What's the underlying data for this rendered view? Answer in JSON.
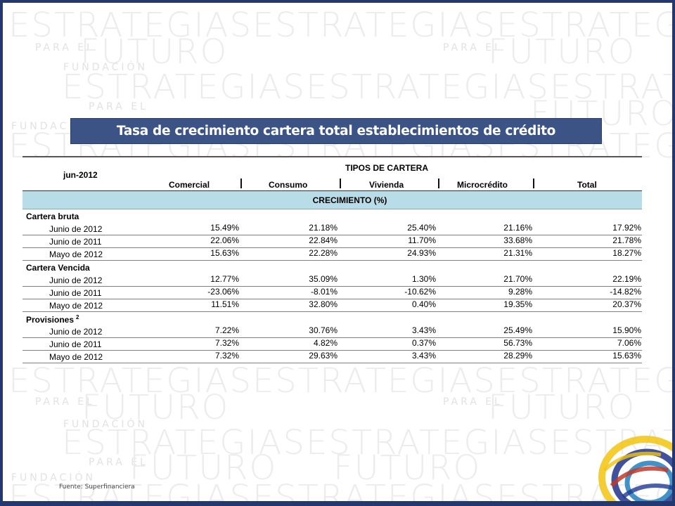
{
  "title": "Tasa de crecimiento cartera total establecimientos de crédito",
  "watermark": {
    "big_word_1": "ESTRATEGIASESTRATEGIASESTRATEGIAS",
    "big_word_2": "FUTURO",
    "small_1": "PARA EL",
    "small_2": "FUNDACIÓN"
  },
  "table": {
    "date": "jun-2012",
    "types_header": "TIPOS DE CARTERA",
    "columns": [
      "Comercial",
      "Consumo",
      "Vivienda",
      "Microcrédito",
      "Total"
    ],
    "band": "CRECIMIENTO (%)",
    "sections": [
      {
        "name": "Cartera bruta",
        "sup": "",
        "rows": [
          {
            "label": "Junio de 2012",
            "values": [
              "15.49%",
              "21.18%",
              "25.40%",
              "21.16%",
              "17.92%"
            ]
          },
          {
            "label": "Junio de 2011",
            "values": [
              "22.06%",
              "22.84%",
              "11.70%",
              "33.68%",
              "21.78%"
            ]
          },
          {
            "label": "Mayo de 2012",
            "values": [
              "15.63%",
              "22.28%",
              "24.93%",
              "21.31%",
              "18.27%"
            ]
          }
        ]
      },
      {
        "name": "Cartera Vencida",
        "sup": "",
        "rows": [
          {
            "label": "Junio de 2012",
            "values": [
              "12.77%",
              "35.09%",
              "1.30%",
              "21.70%",
              "22.19%"
            ]
          },
          {
            "label": "Junio de 2011",
            "values": [
              "-23.06%",
              "-8.01%",
              "-10.62%",
              "9.28%",
              "-14.82%"
            ]
          },
          {
            "label": "Mayo de 2012",
            "values": [
              "11.51%",
              "32.80%",
              "0.40%",
              "19.35%",
              "20.37%"
            ]
          }
        ]
      },
      {
        "name": "Provisiones",
        "sup": "2",
        "rows": [
          {
            "label": "Junio de 2012",
            "values": [
              "7.22%",
              "30.76%",
              "3.43%",
              "25.49%",
              "15.90%"
            ]
          },
          {
            "label": "Junio de 2011",
            "values": [
              "7.32%",
              "4.82%",
              "0.37%",
              "56.73%",
              "7.06%"
            ]
          },
          {
            "label": "Mayo de 2012",
            "values": [
              "7.32%",
              "29.63%",
              "3.43%",
              "28.29%",
              "15.63%"
            ]
          }
        ]
      }
    ]
  },
  "source": "Fuente: Superfinanciera",
  "colors": {
    "frame": "#24386f",
    "title_bar": "#3c5485",
    "band": "#b8dce8"
  },
  "logo": {
    "icon": "fundacion-logo-icon"
  }
}
